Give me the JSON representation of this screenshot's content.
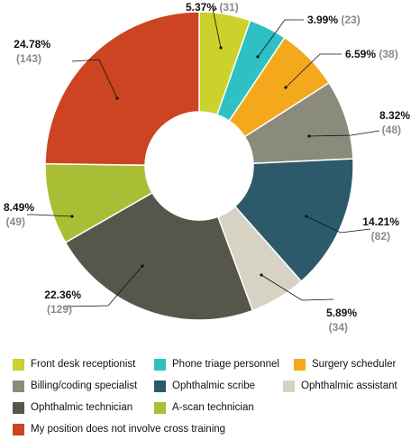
{
  "chart_data": {
    "type": "pie",
    "donut": true,
    "title": "",
    "slices": [
      {
        "label": "Front desk receptionist",
        "percent_text": "5.37%",
        "count_text": "(31)",
        "value": 31,
        "color": "#cbd22c"
      },
      {
        "label": "Phone triage personnel",
        "percent_text": "3.99%",
        "count_text": "(23)",
        "value": 23,
        "color": "#2fc0c4"
      },
      {
        "label": "Surgery scheduler",
        "percent_text": "6.59%",
        "count_text": "(38)",
        "value": 38,
        "color": "#f4a81c"
      },
      {
        "label": "Billing/coding specialist",
        "percent_text": "8.32%",
        "count_text": "(48)",
        "value": 48,
        "color": "#8b8b7c"
      },
      {
        "label": "Ophthalmic scribe",
        "percent_text": "14.21%",
        "count_text": "(82)",
        "value": 82,
        "color": "#2d5a6b"
      },
      {
        "label": "Ophthalmic assistant",
        "percent_text": "5.89%",
        "count_text": "(34)",
        "value": 34,
        "color": "#d6d3c4"
      },
      {
        "label": "Ophthalmic technician",
        "percent_text": "22.36%",
        "count_text": "(129)",
        "value": 129,
        "color": "#57564a"
      },
      {
        "label": "A-scan technician",
        "percent_text": "8.49%",
        "count_text": "(49)",
        "value": 49,
        "color": "#a9be34"
      },
      {
        "label": "My position does not involve cross training",
        "percent_text": "24.78%",
        "count_text": "(143)",
        "value": 143,
        "color": "#cc4422"
      }
    ],
    "legend_placement": "bottom"
  }
}
